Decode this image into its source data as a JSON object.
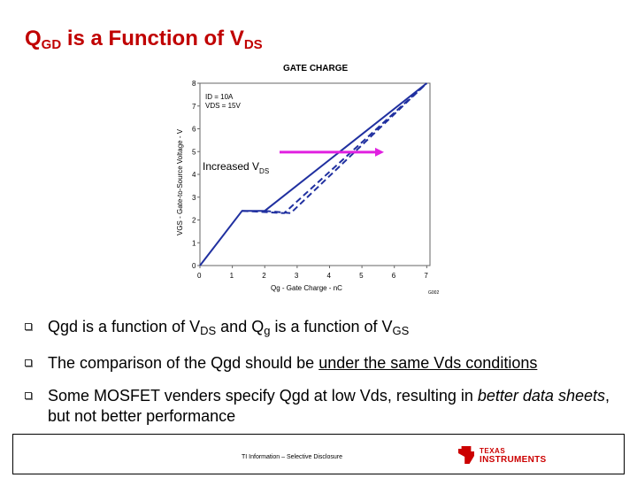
{
  "slide": {
    "title_main": "Q",
    "title_sub": "GD",
    "title_rest": " is a Function of V",
    "title_sub2": "DS"
  },
  "chart_data": {
    "type": "line",
    "title": "GATE CHARGE",
    "ylabel": "VGS - Gate-to-Source Voltage - V",
    "xlabel": "Qg - Gate Charge - nC",
    "figure_id": "G002",
    "legend_line1": "ID = 10A",
    "legend_line2": "VDS = 15V",
    "annotation": "Increased V",
    "annotation_sub": "DS",
    "x_ticks": [
      "0",
      "1",
      "2",
      "3",
      "4",
      "5",
      "6",
      "7"
    ],
    "y_ticks": [
      "0",
      "1",
      "2",
      "3",
      "4",
      "5",
      "6",
      "7",
      "8"
    ],
    "ylim": [
      0,
      8
    ],
    "series": [
      {
        "style": "solid",
        "x": [
          0,
          1.3,
          2.0,
          7.0
        ],
        "y": [
          0,
          2.4,
          2.4,
          8
        ]
      },
      {
        "style": "dashed",
        "x": [
          2.0,
          2.8,
          7.0
        ],
        "y": [
          2.4,
          2.3,
          8
        ]
      },
      {
        "style": "dashed",
        "x": [
          1.3,
          2.6,
          7.0
        ],
        "y": [
          2.4,
          2.3,
          8
        ]
      }
    ],
    "arrow_color": "#e020e0",
    "line_color": "#2030a0"
  },
  "bullets": {
    "b1_a": "Qgd is a function of V",
    "b1_sub1": "DS",
    "b1_b": " and Q",
    "b1_sub2": "g",
    "b1_c": " is a function of V",
    "b1_sub3": "GS",
    "b2_a": "The comparison of the Qgd should be ",
    "b2_u": "under the same Vds conditions",
    "b3_a": "Some MOSFET venders specify Qgd at low Vds, resulting in ",
    "b3_i1": "better data sheets",
    "b3_b": ", but not better performance"
  },
  "footer": {
    "text": "TI Information – Selective Disclosure",
    "logo_line1": "TEXAS",
    "logo_line2": "INSTRUMENTS"
  }
}
